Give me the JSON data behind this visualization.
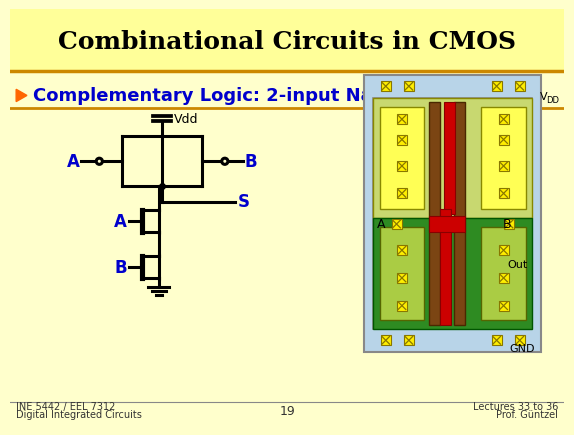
{
  "title": "Combinational Circuits in CMOS",
  "subtitle": "Complementary Logic: 2-input Nand",
  "title_bg": "#FFFF99",
  "slide_bg": "#FFFFCC",
  "title_color": "#000000",
  "subtitle_color": "#0000CC",
  "footer_left1": "INE 5442 / EEL 7312",
  "footer_left2": "Digital Integrated Circuits",
  "footer_center": "19",
  "footer_right1": "Lectures 33 to 36",
  "footer_right2": "Prof. Güntzel",
  "label_A": "A",
  "label_B": "B",
  "label_A2": "A",
  "label_B2": "B",
  "label_S": "S",
  "label_Vdd": "Vdd",
  "label_VDD": "V",
  "label_DD": "DD",
  "label_GND": "GND",
  "label_Out": "Out"
}
